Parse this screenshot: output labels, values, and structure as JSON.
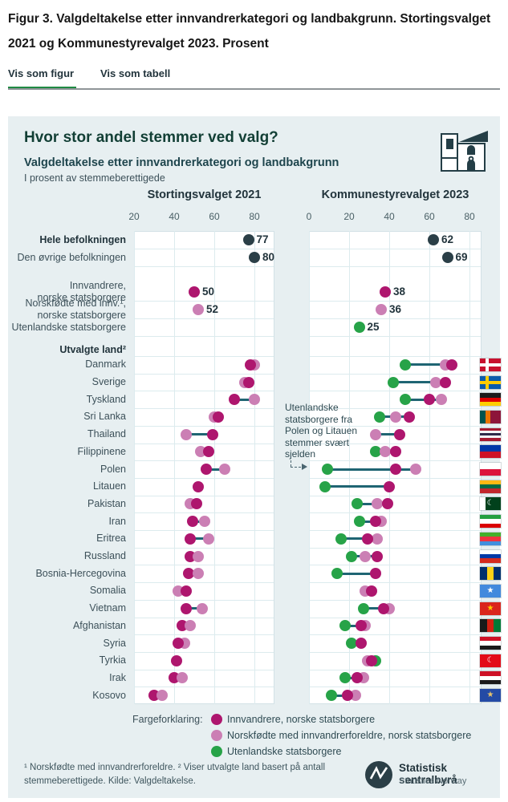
{
  "page": {
    "title": "Figur 3. Valgdeltakelse etter innvandrerkategori og landbakgrunn. Stortingsvalget 2021 og Kommunestyrevalget 2023. Prosent",
    "tabs": [
      {
        "label": "Vis som figur",
        "active": true
      },
      {
        "label": "Vis som tabell",
        "active": false
      }
    ]
  },
  "card": {
    "title": "Hvor stor andel stemmer ved valg?",
    "subtitle": "Valgdeltakelse etter innvandrerkategori og landbakgrunn",
    "unit_note": "I prosent av stemmeberettigede"
  },
  "chart_data": {
    "type": "dot-plot",
    "panels": [
      {
        "id": "left",
        "title": "Stortingsvalget 2021",
        "axis_min": 20,
        "axis_max": 90,
        "ticks": [
          20,
          40,
          60,
          80
        ]
      },
      {
        "id": "right",
        "title": "Kommunestyrevalget 2023",
        "axis_min": 0,
        "axis_max": 86,
        "ticks": [
          0,
          20,
          40,
          60,
          80
        ]
      }
    ],
    "series": [
      {
        "key": "total",
        "label": "Hele/øvrige befolkningen",
        "color": "#2b3f47"
      },
      {
        "key": "inn",
        "label": "Innvandrere, norske statsborgere",
        "color": "#ae166e"
      },
      {
        "key": "nf",
        "label": "Norskfødte med innvandrerforeldre, norsk statsborgere",
        "color": "#cb7fb4"
      },
      {
        "key": "utl",
        "label": "Utenlandske statsborgere",
        "color": "#27a348"
      }
    ],
    "summary_rows": [
      {
        "label_lines": [
          "Hele befolkningen"
        ],
        "bold": true,
        "left": [
          {
            "s": "total",
            "v": 77,
            "t": "77"
          }
        ],
        "right": [
          {
            "s": "total",
            "v": 62,
            "t": "62"
          }
        ]
      },
      {
        "label_lines": [
          "Den øvrige befolkningen"
        ],
        "bold": false,
        "left": [
          {
            "s": "total",
            "v": 80,
            "t": "80"
          }
        ],
        "right": [
          {
            "s": "total",
            "v": 69,
            "t": "69"
          }
        ]
      },
      {
        "label_lines": [
          "Innvandrere,",
          "norske statsborgere"
        ],
        "bold": false,
        "left": [
          {
            "s": "inn",
            "v": 50,
            "t": "50"
          }
        ],
        "right": [
          {
            "s": "inn",
            "v": 38,
            "t": "38"
          }
        ]
      },
      {
        "label_lines": [
          "Norskfødte med innv.¹,",
          "norske statsborgere"
        ],
        "bold": false,
        "left": [
          {
            "s": "nf",
            "v": 52,
            "t": "52"
          }
        ],
        "right": [
          {
            "s": "nf",
            "v": 36,
            "t": "36"
          }
        ]
      },
      {
        "label_lines": [
          "Utenlandske statsborgere"
        ],
        "bold": false,
        "left": [],
        "right": [
          {
            "s": "utl",
            "v": 25,
            "t": "25"
          }
        ]
      }
    ],
    "countries_header": "Utvalgte land²",
    "countries": [
      {
        "name": "Danmark",
        "left": [
          {
            "s": "nf",
            "v": 80
          },
          {
            "s": "inn",
            "v": 78
          }
        ],
        "right": [
          {
            "s": "utl",
            "v": 48
          },
          {
            "s": "nf",
            "v": 68
          },
          {
            "s": "inn",
            "v": 71
          }
        ],
        "flag": {
          "type": "cross",
          "bg": "#c8102e",
          "cross": "#ffffff"
        }
      },
      {
        "name": "Sverige",
        "left": [
          {
            "s": "nf",
            "v": 75
          },
          {
            "s": "inn",
            "v": 77
          }
        ],
        "right": [
          {
            "s": "utl",
            "v": 42
          },
          {
            "s": "nf",
            "v": 63
          },
          {
            "s": "inn",
            "v": 68
          }
        ],
        "flag": {
          "type": "cross",
          "bg": "#0a5bab",
          "cross": "#fecc00"
        }
      },
      {
        "name": "Tyskland",
        "left": [
          {
            "s": "inn",
            "v": 70
          },
          {
            "s": "nf",
            "v": 80
          }
        ],
        "right": [
          {
            "s": "utl",
            "v": 48
          },
          {
            "s": "inn",
            "v": 60
          },
          {
            "s": "nf",
            "v": 66
          }
        ],
        "flag": {
          "type": "h",
          "colors": [
            "#1a1a1a",
            "#dd0000",
            "#ffce00"
          ]
        }
      },
      {
        "name": "Sri Lanka",
        "left": [
          {
            "s": "nf",
            "v": 60
          },
          {
            "s": "inn",
            "v": 62
          }
        ],
        "right": [
          {
            "s": "utl",
            "v": 35
          },
          {
            "s": "nf",
            "v": 43
          },
          {
            "s": "inn",
            "v": 50
          }
        ],
        "flag": {
          "type": "v",
          "colors": [
            "#00534e",
            "#eb7400",
            "#8d153a",
            "#8d153a"
          ]
        }
      },
      {
        "name": "Thailand",
        "left": [
          {
            "s": "nf",
            "v": 46
          },
          {
            "s": "inn",
            "v": 59
          }
        ],
        "right": [
          {
            "s": "nf",
            "v": 33
          },
          {
            "s": "inn",
            "v": 45
          }
        ],
        "flag": {
          "type": "h",
          "colors": [
            "#a51931",
            "#f4f5f8",
            "#2d2a4a",
            "#f4f5f8",
            "#a51931"
          ]
        }
      },
      {
        "name": "Filippinene",
        "left": [
          {
            "s": "nf",
            "v": 53
          },
          {
            "s": "inn",
            "v": 57
          }
        ],
        "right": [
          {
            "s": "utl",
            "v": 33
          },
          {
            "s": "nf",
            "v": 38
          },
          {
            "s": "inn",
            "v": 43
          }
        ],
        "flag": {
          "type": "h",
          "colors": [
            "#0038a8",
            "#ce1126"
          ]
        }
      },
      {
        "name": "Polen",
        "left": [
          {
            "s": "inn",
            "v": 56
          },
          {
            "s": "nf",
            "v": 65
          }
        ],
        "right": [
          {
            "s": "utl",
            "v": 9
          },
          {
            "s": "inn",
            "v": 43
          },
          {
            "s": "nf",
            "v": 53
          }
        ],
        "flag": {
          "type": "h",
          "colors": [
            "#ffffff",
            "#dc143c"
          ]
        }
      },
      {
        "name": "Litauen",
        "left": [
          {
            "s": "inn",
            "v": 52
          }
        ],
        "right": [
          {
            "s": "utl",
            "v": 8
          },
          {
            "s": "inn",
            "v": 40
          }
        ],
        "flag": {
          "type": "h",
          "colors": [
            "#fdb913",
            "#006a44",
            "#c1272d"
          ]
        }
      },
      {
        "name": "Pakistan",
        "left": [
          {
            "s": "nf",
            "v": 48
          },
          {
            "s": "inn",
            "v": 51
          }
        ],
        "right": [
          {
            "s": "utl",
            "v": 24
          },
          {
            "s": "nf",
            "v": 34
          },
          {
            "s": "inn",
            "v": 39
          }
        ],
        "flag": {
          "type": "v",
          "colors": [
            "#ffffff",
            "#01411c",
            "#01411c",
            "#01411c"
          ],
          "char": "☾",
          "charColor": "#ffffff"
        }
      },
      {
        "name": "Iran",
        "left": [
          {
            "s": "inn",
            "v": 49
          },
          {
            "s": "nf",
            "v": 55
          }
        ],
        "right": [
          {
            "s": "utl",
            "v": 25
          },
          {
            "s": "nf",
            "v": 36
          },
          {
            "s": "inn",
            "v": 33
          }
        ],
        "flag": {
          "type": "h",
          "colors": [
            "#239f40",
            "#ffffff",
            "#da0000"
          ]
        }
      },
      {
        "name": "Eritrea",
        "left": [
          {
            "s": "inn",
            "v": 48
          },
          {
            "s": "nf",
            "v": 57
          }
        ],
        "right": [
          {
            "s": "utl",
            "v": 16
          },
          {
            "s": "nf",
            "v": 34
          },
          {
            "s": "inn",
            "v": 29
          }
        ],
        "flag": {
          "type": "h",
          "colors": [
            "#43b02a",
            "#ef3340",
            "#418fde"
          ]
        }
      },
      {
        "name": "Russland",
        "left": [
          {
            "s": "inn",
            "v": 48
          },
          {
            "s": "nf",
            "v": 52
          }
        ],
        "right": [
          {
            "s": "utl",
            "v": 21
          },
          {
            "s": "nf",
            "v": 28
          },
          {
            "s": "inn",
            "v": 34
          }
        ],
        "flag": {
          "type": "h",
          "colors": [
            "#ffffff",
            "#0039a6",
            "#d52b1e"
          ]
        }
      },
      {
        "name": "Bosnia-Hercegovina",
        "left": [
          {
            "s": "inn",
            "v": 47
          },
          {
            "s": "nf",
            "v": 52
          }
        ],
        "right": [
          {
            "s": "utl",
            "v": 14
          },
          {
            "s": "inn",
            "v": 33
          }
        ],
        "flag": {
          "type": "v",
          "colors": [
            "#002f6c",
            "#fcd116",
            "#002f6c"
          ]
        }
      },
      {
        "name": "Somalia",
        "left": [
          {
            "s": "nf",
            "v": 42
          },
          {
            "s": "inn",
            "v": 46
          }
        ],
        "right": [
          {
            "s": "nf",
            "v": 28
          },
          {
            "s": "inn",
            "v": 31
          }
        ],
        "flag": {
          "type": "h",
          "colors": [
            "#4189dd"
          ],
          "char": "★",
          "charColor": "#ffffff"
        }
      },
      {
        "name": "Vietnam",
        "left": [
          {
            "s": "inn",
            "v": 46
          },
          {
            "s": "nf",
            "v": 54
          }
        ],
        "right": [
          {
            "s": "utl",
            "v": 27
          },
          {
            "s": "nf",
            "v": 40
          },
          {
            "s": "inn",
            "v": 37
          }
        ],
        "flag": {
          "type": "h",
          "colors": [
            "#da251d"
          ],
          "char": "★",
          "charColor": "#ffcd00"
        }
      },
      {
        "name": "Afghanistan",
        "left": [
          {
            "s": "inn",
            "v": 44
          },
          {
            "s": "nf",
            "v": 48
          }
        ],
        "right": [
          {
            "s": "utl",
            "v": 18
          },
          {
            "s": "nf",
            "v": 28
          },
          {
            "s": "inn",
            "v": 26
          }
        ],
        "flag": {
          "type": "v",
          "colors": [
            "#1a1a1a",
            "#d32011",
            "#007a36"
          ]
        }
      },
      {
        "name": "Syria",
        "left": [
          {
            "s": "nf",
            "v": 45
          },
          {
            "s": "inn",
            "v": 42
          }
        ],
        "right": [
          {
            "s": "utl",
            "v": 21
          },
          {
            "s": "inn",
            "v": 26
          }
        ],
        "flag": {
          "type": "h",
          "colors": [
            "#ce1126",
            "#ffffff",
            "#1a1a1a"
          ]
        }
      },
      {
        "name": "Tyrkia",
        "left": [
          {
            "s": "inn",
            "v": 41
          }
        ],
        "right": [
          {
            "s": "utl",
            "v": 33
          },
          {
            "s": "nf",
            "v": 29
          },
          {
            "s": "inn",
            "v": 31
          }
        ],
        "flag": {
          "type": "h",
          "colors": [
            "#e30a17"
          ],
          "char": "☾",
          "charColor": "#ffffff"
        }
      },
      {
        "name": "Irak",
        "left": [
          {
            "s": "inn",
            "v": 40
          },
          {
            "s": "nf",
            "v": 44
          }
        ],
        "right": [
          {
            "s": "utl",
            "v": 18
          },
          {
            "s": "nf",
            "v": 27
          },
          {
            "s": "inn",
            "v": 24
          }
        ],
        "flag": {
          "type": "h",
          "colors": [
            "#ce1126",
            "#ffffff",
            "#1a1a1a"
          ]
        }
      },
      {
        "name": "Kosovo",
        "left": [
          {
            "s": "inn",
            "v": 30
          },
          {
            "s": "nf",
            "v": 34
          }
        ],
        "right": [
          {
            "s": "utl",
            "v": 11
          },
          {
            "s": "nf",
            "v": 23
          },
          {
            "s": "inn",
            "v": 19
          }
        ],
        "flag": {
          "type": "h",
          "colors": [
            "#244aa5"
          ],
          "char": "★",
          "charColor": "#e8c46a"
        }
      }
    ],
    "annotation": {
      "lines": [
        "Utenlandske",
        "statsborgere fra",
        "Polen og Litauen",
        "stemmer svært",
        "sjelden"
      ]
    },
    "legend": {
      "title": "Fargeforklaring:",
      "items": [
        {
          "color": "#ae166e",
          "label": "Innvandrere, norske statsborgere"
        },
        {
          "color": "#cb7fb4",
          "label": "Norskfødte med innvandrerforeldre, norsk statsborgere"
        },
        {
          "color": "#27a348",
          "label": "Utenlandske statsborgere"
        }
      ]
    }
  },
  "footer": {
    "footnote": "¹ Norskfødte med innvandrerforeldre. ² Viser utvalgte land basert på antall stemmeberettigede. Kilde: Valgdeltakelse.",
    "logo": {
      "name": "Statistisk sentralbyrå",
      "name_en": "Statistics Norway"
    }
  }
}
